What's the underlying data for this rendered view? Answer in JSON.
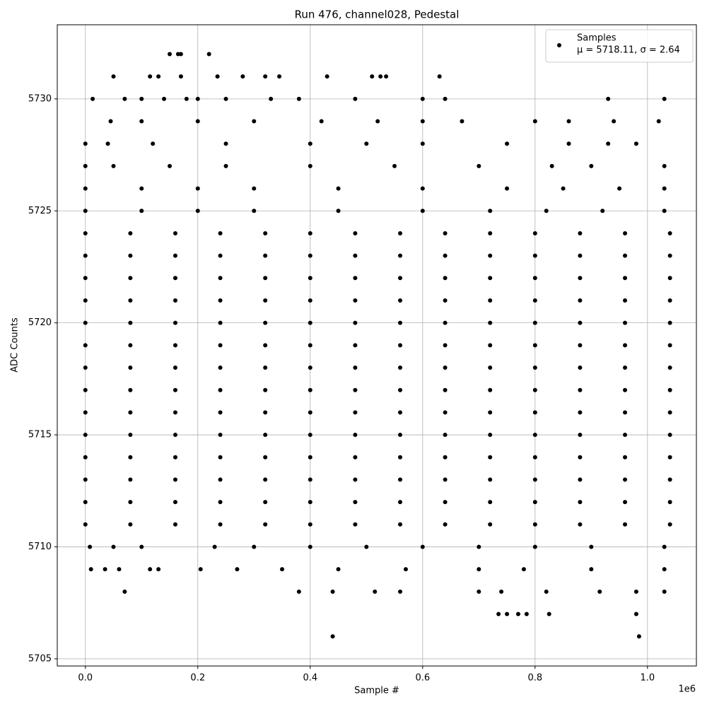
{
  "chart_data": {
    "type": "scatter",
    "title": "Run 476, channel028, Pedestal",
    "xlabel": "Sample #",
    "ylabel": "ADC Counts",
    "x_offset_label": "1e6",
    "xlim": [
      -0.05,
      1.087
    ],
    "ylim": [
      5704.68,
      5733.31
    ],
    "xticks": [
      {
        "value": 0,
        "label": "0.0"
      },
      0.2,
      0.4,
      0.6,
      0.8,
      {
        "value": 1,
        "label": "1.0"
      }
    ],
    "yticks": [
      5705,
      5710,
      5715,
      5720,
      5725,
      5730
    ],
    "grid": true,
    "legend": "upper right",
    "series": [
      {
        "name": "Samples",
        "legend_note": "μ = 5718.11, σ = 2.64",
        "color": "#000000",
        "x": [
          0.15,
          0.165,
          0.17,
          0.22,
          0.05,
          0.115,
          0.13,
          0.17,
          0.235,
          0.28,
          0.32,
          0.345,
          0.43,
          0.51,
          0.525,
          0.535,
          0.63,
          0.013,
          0.07,
          0.1,
          0.14,
          0.18,
          0.2,
          0.25,
          0.33,
          0.38,
          0.48,
          0.6,
          0.64,
          0.93,
          1.03,
          0.045,
          0.1,
          0.2,
          0.3,
          0.42,
          0.52,
          0.6,
          0.67,
          0.8,
          0.86,
          0.94,
          1.02,
          0,
          0.04,
          0.12,
          0.25,
          0.4,
          0.5,
          0.6,
          0.75,
          0.86,
          0.93,
          0.98,
          0,
          0.05,
          0.15,
          0.25,
          0.4,
          0.55,
          0.7,
          0.83,
          0.9,
          1.03,
          0,
          0.1,
          0.2,
          0.3,
          0.45,
          0.6,
          0.75,
          0.85,
          0.95,
          1.03,
          0,
          0.1,
          0.2,
          0.3,
          0.45,
          0.6,
          0.72,
          0.82,
          0.92,
          1.03,
          0.008,
          0.05,
          0.1,
          0.23,
          0.3,
          0.4,
          0.5,
          0.6,
          0.7,
          0.8,
          0.9,
          1.03,
          0.01,
          0.035,
          0.06,
          0.115,
          0.13,
          0.205,
          0.27,
          0.35,
          0.45,
          0.57,
          0.7,
          0.78,
          0.9,
          1.03,
          0.07,
          0.38,
          0.44,
          0.515,
          0.56,
          0.7,
          0.74,
          0.82,
          0.915,
          0.98,
          1.03,
          0.735,
          0.75,
          0.77,
          0.785,
          0.825,
          0.98,
          0.44,
          0.985,
          0,
          0.08,
          0.16,
          0.24,
          0.32,
          0.4,
          0.48,
          0.56,
          0.64,
          0.72,
          0.8,
          0.88,
          0.96,
          1.04,
          0,
          0.08,
          0.16,
          0.24,
          0.32,
          0.4,
          0.48,
          0.56,
          0.64,
          0.72,
          0.8,
          0.88,
          0.96,
          1.04,
          0,
          0.08,
          0.16,
          0.24,
          0.32,
          0.4,
          0.48,
          0.56,
          0.64,
          0.72,
          0.8,
          0.88,
          0.96,
          1.04,
          0,
          0.08,
          0.16,
          0.24,
          0.32,
          0.4,
          0.48,
          0.56,
          0.64,
          0.72,
          0.8,
          0.88,
          0.96,
          1.04,
          0,
          0.08,
          0.16,
          0.24,
          0.32,
          0.4,
          0.48,
          0.56,
          0.64,
          0.72,
          0.8,
          0.88,
          0.96,
          1.04,
          0,
          0.08,
          0.16,
          0.24,
          0.32,
          0.4,
          0.48,
          0.56,
          0.64,
          0.72,
          0.8,
          0.88,
          0.96,
          1.04,
          0,
          0.08,
          0.16,
          0.24,
          0.32,
          0.4,
          0.48,
          0.56,
          0.64,
          0.72,
          0.8,
          0.88,
          0.96,
          1.04,
          0,
          0.08,
          0.16,
          0.24,
          0.32,
          0.4,
          0.48,
          0.56,
          0.64,
          0.72,
          0.8,
          0.88,
          0.96,
          1.04,
          0,
          0.08,
          0.16,
          0.24,
          0.32,
          0.4,
          0.48,
          0.56,
          0.64,
          0.72,
          0.8,
          0.88,
          0.96,
          1.04,
          0,
          0.08,
          0.16,
          0.24,
          0.32,
          0.4,
          0.48,
          0.56,
          0.64,
          0.72,
          0.8,
          0.88,
          0.96,
          1.04,
          0,
          0.08,
          0.16,
          0.24,
          0.32,
          0.4,
          0.48,
          0.56,
          0.64,
          0.72,
          0.8,
          0.88,
          0.96,
          1.04,
          0,
          0.08,
          0.16,
          0.24,
          0.32,
          0.4,
          0.48,
          0.56,
          0.64,
          0.72,
          0.8,
          0.88,
          0.96,
          1.04,
          0,
          0.08,
          0.16,
          0.24,
          0.32,
          0.4,
          0.48,
          0.56,
          0.64,
          0.72,
          0.8,
          0.88,
          0.96,
          1.04,
          0,
          0.08,
          0.16,
          0.24,
          0.32,
          0.4,
          0.48,
          0.56,
          0.64,
          0.72,
          0.8,
          0.88,
          0.96,
          1.04
        ],
        "y": [
          5732,
          5732,
          5732,
          5732,
          5731,
          5731,
          5731,
          5731,
          5731,
          5731,
          5731,
          5731,
          5731,
          5731,
          5731,
          5731,
          5731,
          5730,
          5730,
          5730,
          5730,
          5730,
          5730,
          5730,
          5730,
          5730,
          5730,
          5730,
          5730,
          5730,
          5730,
          5729,
          5729,
          5729,
          5729,
          5729,
          5729,
          5729,
          5729,
          5729,
          5729,
          5729,
          5729,
          5728,
          5728,
          5728,
          5728,
          5728,
          5728,
          5728,
          5728,
          5728,
          5728,
          5728,
          5727,
          5727,
          5727,
          5727,
          5727,
          5727,
          5727,
          5727,
          5727,
          5727,
          5726,
          5726,
          5726,
          5726,
          5726,
          5726,
          5726,
          5726,
          5726,
          5726,
          5725,
          5725,
          5725,
          5725,
          5725,
          5725,
          5725,
          5725,
          5725,
          5725,
          5710,
          5710,
          5710,
          5710,
          5710,
          5710,
          5710,
          5710,
          5710,
          5710,
          5710,
          5710,
          5709,
          5709,
          5709,
          5709,
          5709,
          5709,
          5709,
          5709,
          5709,
          5709,
          5709,
          5709,
          5709,
          5709,
          5708,
          5708,
          5708,
          5708,
          5708,
          5708,
          5708,
          5708,
          5708,
          5708,
          5708,
          5707,
          5707,
          5707,
          5707,
          5707,
          5707,
          5706,
          5706,
          5711,
          5711,
          5711,
          5711,
          5711,
          5711,
          5711,
          5711,
          5711,
          5711,
          5711,
          5711,
          5711,
          5711,
          5712,
          5712,
          5712,
          5712,
          5712,
          5712,
          5712,
          5712,
          5712,
          5712,
          5712,
          5712,
          5712,
          5712,
          5713,
          5713,
          5713,
          5713,
          5713,
          5713,
          5713,
          5713,
          5713,
          5713,
          5713,
          5713,
          5713,
          5713,
          5714,
          5714,
          5714,
          5714,
          5714,
          5714,
          5714,
          5714,
          5714,
          5714,
          5714,
          5714,
          5714,
          5714,
          5715,
          5715,
          5715,
          5715,
          5715,
          5715,
          5715,
          5715,
          5715,
          5715,
          5715,
          5715,
          5715,
          5715,
          5716,
          5716,
          5716,
          5716,
          5716,
          5716,
          5716,
          5716,
          5716,
          5716,
          5716,
          5716,
          5716,
          5716,
          5717,
          5717,
          5717,
          5717,
          5717,
          5717,
          5717,
          5717,
          5717,
          5717,
          5717,
          5717,
          5717,
          5717,
          5718,
          5718,
          5718,
          5718,
          5718,
          5718,
          5718,
          5718,
          5718,
          5718,
          5718,
          5718,
          5718,
          5718,
          5719,
          5719,
          5719,
          5719,
          5719,
          5719,
          5719,
          5719,
          5719,
          5719,
          5719,
          5719,
          5719,
          5719,
          5720,
          5720,
          5720,
          5720,
          5720,
          5720,
          5720,
          5720,
          5720,
          5720,
          5720,
          5720,
          5720,
          5720,
          5721,
          5721,
          5721,
          5721,
          5721,
          5721,
          5721,
          5721,
          5721,
          5721,
          5721,
          5721,
          5721,
          5721,
          5722,
          5722,
          5722,
          5722,
          5722,
          5722,
          5722,
          5722,
          5722,
          5722,
          5722,
          5722,
          5722,
          5722,
          5723,
          5723,
          5723,
          5723,
          5723,
          5723,
          5723,
          5723,
          5723,
          5723,
          5723,
          5723,
          5723,
          5723,
          5724,
          5724,
          5724,
          5724,
          5724,
          5724,
          5724,
          5724,
          5724,
          5724,
          5724,
          5724,
          5724,
          5724
        ]
      }
    ]
  }
}
